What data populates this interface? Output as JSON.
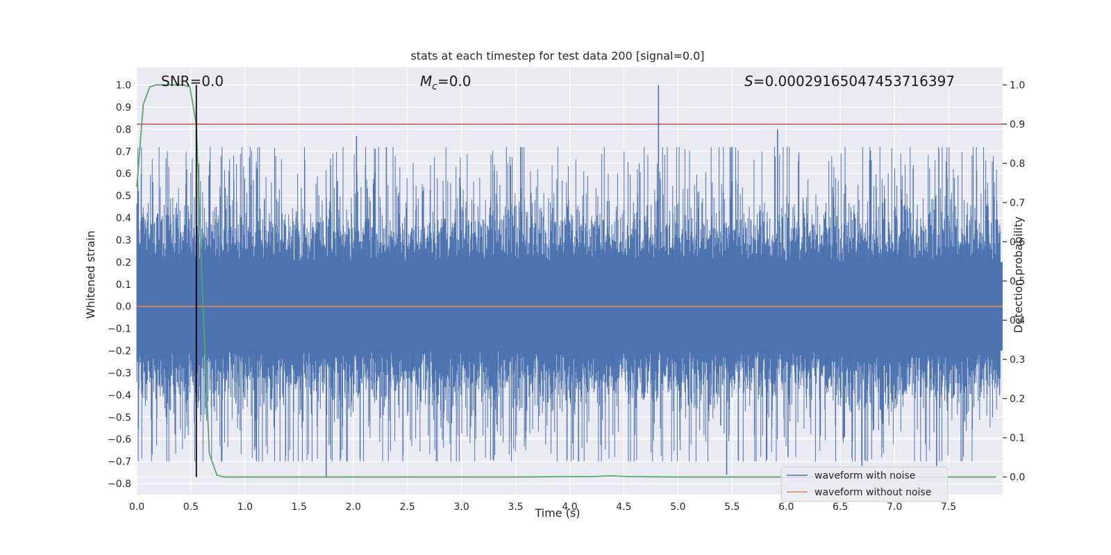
{
  "chart_data": {
    "type": "line",
    "title": "stats at each timestep for test data 200 [signal=0.0]",
    "xlabel": "Time (s)",
    "ylabel": "Whitened strain",
    "y2label": "Detection probability",
    "xlim": [
      0.0,
      8.0
    ],
    "ylim": [
      -0.85,
      1.08
    ],
    "y2lim": [
      -0.045,
      1.045
    ],
    "x_ticks": [
      0.0,
      0.5,
      1.0,
      1.5,
      2.0,
      2.5,
      3.0,
      3.5,
      4.0,
      4.5,
      5.0,
      5.5,
      6.0,
      6.5,
      7.0,
      7.5
    ],
    "x_tick_labels": [
      "0.0",
      "0.5",
      "1.0",
      "1.5",
      "2.0",
      "2.5",
      "3.0",
      "3.5",
      "4.0",
      "4.5",
      "5.0",
      "5.5",
      "6.0",
      "6.5",
      "7.0",
      "7.5"
    ],
    "y_ticks": [
      1.0,
      0.9,
      0.8,
      0.7,
      0.6,
      0.5,
      0.4,
      0.3,
      0.2,
      0.1,
      0.0,
      -0.1,
      -0.2,
      -0.3,
      -0.4,
      -0.5,
      -0.6,
      -0.7,
      -0.8
    ],
    "y_tick_labels": [
      "1.0",
      "0.9",
      "0.8",
      "0.7",
      "0.6",
      "0.5",
      "0.4",
      "0.3",
      "0.2",
      "0.1",
      "0.0",
      "−0.1",
      "−0.2",
      "−0.3",
      "−0.4",
      "−0.5",
      "−0.6",
      "−0.7",
      "−0.8"
    ],
    "y2_ticks": [
      1.0,
      0.9,
      0.8,
      0.7,
      0.6,
      0.5,
      0.4,
      0.3,
      0.2,
      0.1,
      0.0
    ],
    "y2_tick_labels": [
      "1.0",
      "0.9",
      "0.8",
      "0.7",
      "0.6",
      "0.5",
      "0.4",
      "0.3",
      "0.2",
      "0.1",
      "0.0"
    ],
    "grid": true,
    "legend_position": "bottom-right",
    "annotations": {
      "snr": "SNR=0.0",
      "mc_symbol": "M",
      "mc_sub": "c",
      "mc_value": "=0.0",
      "s_symbol": "S",
      "s_value": "=0.00029165047453716397"
    },
    "series": [
      {
        "name": "waveform with noise",
        "color": "#4c72b0",
        "axis": "left",
        "noise_envelope": {
          "core": 0.2,
          "typical_peak": 0.5,
          "max": 1.0,
          "min": -0.77
        },
        "notable_spikes": [
          {
            "x": 4.82,
            "y": 1.0
          },
          {
            "x": 2.03,
            "y": 0.77
          },
          {
            "x": 5.92,
            "y": 0.8
          },
          {
            "x": 5.45,
            "y": -0.76
          },
          {
            "x": 1.75,
            "y": -0.77
          },
          {
            "x": 6.7,
            "y": -0.72
          },
          {
            "x": 7.39,
            "y": -0.72
          }
        ]
      },
      {
        "name": "waveform without noise",
        "color": "#dd8452",
        "axis": "left",
        "x": [
          0.0,
          8.0
        ],
        "y": [
          0.0,
          0.0
        ]
      },
      {
        "color": "#55a868",
        "axis": "right",
        "x": [
          0.0,
          0.06,
          0.12,
          0.18,
          0.25,
          0.31,
          0.37,
          0.43,
          0.49,
          0.55,
          0.61,
          0.67,
          0.74,
          0.8,
          0.86,
          1.5,
          2.5,
          3.5,
          4.0,
          4.2,
          4.38,
          4.55,
          5.0,
          6.0,
          7.0,
          7.94
        ],
        "y": [
          0.74,
          0.95,
          0.995,
          1.0,
          1.0,
          1.0,
          1.0,
          1.0,
          0.995,
          0.9,
          0.45,
          0.06,
          0.005,
          0.0,
          0.0,
          0.0,
          0.0,
          0.0,
          0.001,
          0.001,
          0.003,
          0.001,
          0.0,
          0.0,
          0.0,
          0.0
        ]
      },
      {
        "color": "#c44e52",
        "axis": "right",
        "type": "hline",
        "y": 0.9
      },
      {
        "color": "#000000",
        "axis": "right",
        "type": "vline",
        "x": 0.55,
        "y": [
          0.0,
          1.0
        ]
      }
    ]
  }
}
